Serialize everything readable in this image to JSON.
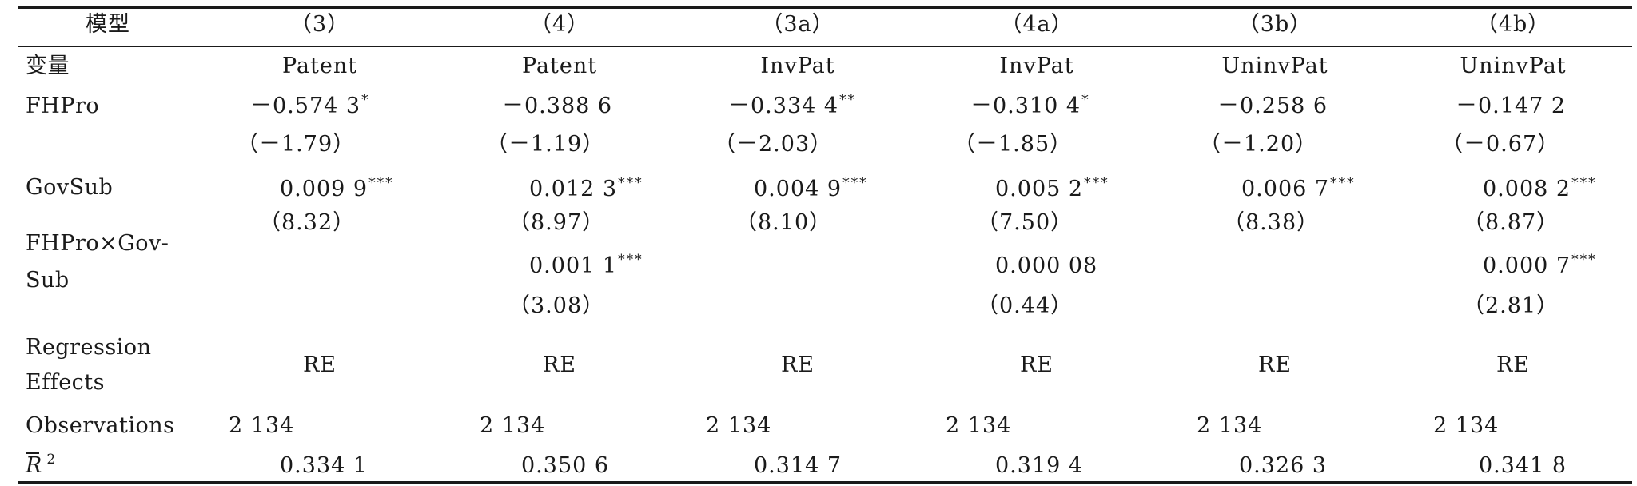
{
  "headers": {
    "model": "模型",
    "c3": "（3）",
    "c4": "（4）",
    "c3a": "（3a）",
    "c4a": "（4a）",
    "c3b": "（3b）",
    "c4b": "（4b）"
  },
  "rows": {
    "variable": {
      "label": "变量",
      "c3": "Patent",
      "c4": "Patent",
      "c3a": "InvPat",
      "c4a": "InvPat",
      "c3b": "UninvPat",
      "c4b": "UninvPat"
    },
    "fhpro": {
      "label": "FHPro",
      "c3": "－0.574 3",
      "c3_sig": "*",
      "c4": "－0.388 6",
      "c3a": "－0.334 4",
      "c3a_sig": "**",
      "c4a": "－0.310 4",
      "c4a_sig": "*",
      "c3b": "－0.258 6",
      "c4b": "－0.147 2"
    },
    "fhpro_t": {
      "c3": "（－1.79）",
      "c4": "（－1.19）",
      "c3a": "（－2.03）",
      "c4a": "（－1.85）",
      "c3b": "（－1.20）",
      "c4b": "（－0.67）"
    },
    "govsub": {
      "label": "GovSub",
      "c3": "0.009 9",
      "c3_sig": "***",
      "c4": "0.012 3",
      "c4_sig": "***",
      "c3a": "0.004 9",
      "c3a_sig": "***",
      "c4a": "0.005 2",
      "c4a_sig": "***",
      "c3b": "0.006 7",
      "c3b_sig": "***",
      "c4b": "0.008 2",
      "c4b_sig": "***"
    },
    "govsub_t": {
      "c3": "（8.32）",
      "c4": "（8.97）",
      "c3a": "（8.10）",
      "c4a": "（7.50）",
      "c3b": "（8.38）",
      "c4b": "（8.87）"
    },
    "interaction": {
      "label_line1": "FHPro×Gov-",
      "label_line2": "Sub",
      "c4": "0.001 1",
      "c4_sig": "***",
      "c4a": "0.000 08",
      "c4b": "0.000 7",
      "c4b_sig": "***"
    },
    "interaction_t": {
      "c4": "（3.08）",
      "c4a": "（0.44）",
      "c4b": "（2.81）"
    },
    "effects": {
      "label_line1": "Regression",
      "label_line2": "Effects",
      "c3": "RE",
      "c4": "RE",
      "c3a": "RE",
      "c4a": "RE",
      "c3b": "RE",
      "c4b": "RE"
    },
    "observations": {
      "label": "Observations",
      "c3": "2 134",
      "c4": "2 134",
      "c3a": "2 134",
      "c4a": "2 134",
      "c3b": "2 134",
      "c4b": "2 134"
    },
    "r2": {
      "label": "R",
      "label_sup": "2",
      "c3": "0.334 1",
      "c4": "0.350 6",
      "c3a": "0.314 7",
      "c4a": "0.319 4",
      "c3b": "0.326 3",
      "c4b": "0.341 8"
    }
  }
}
